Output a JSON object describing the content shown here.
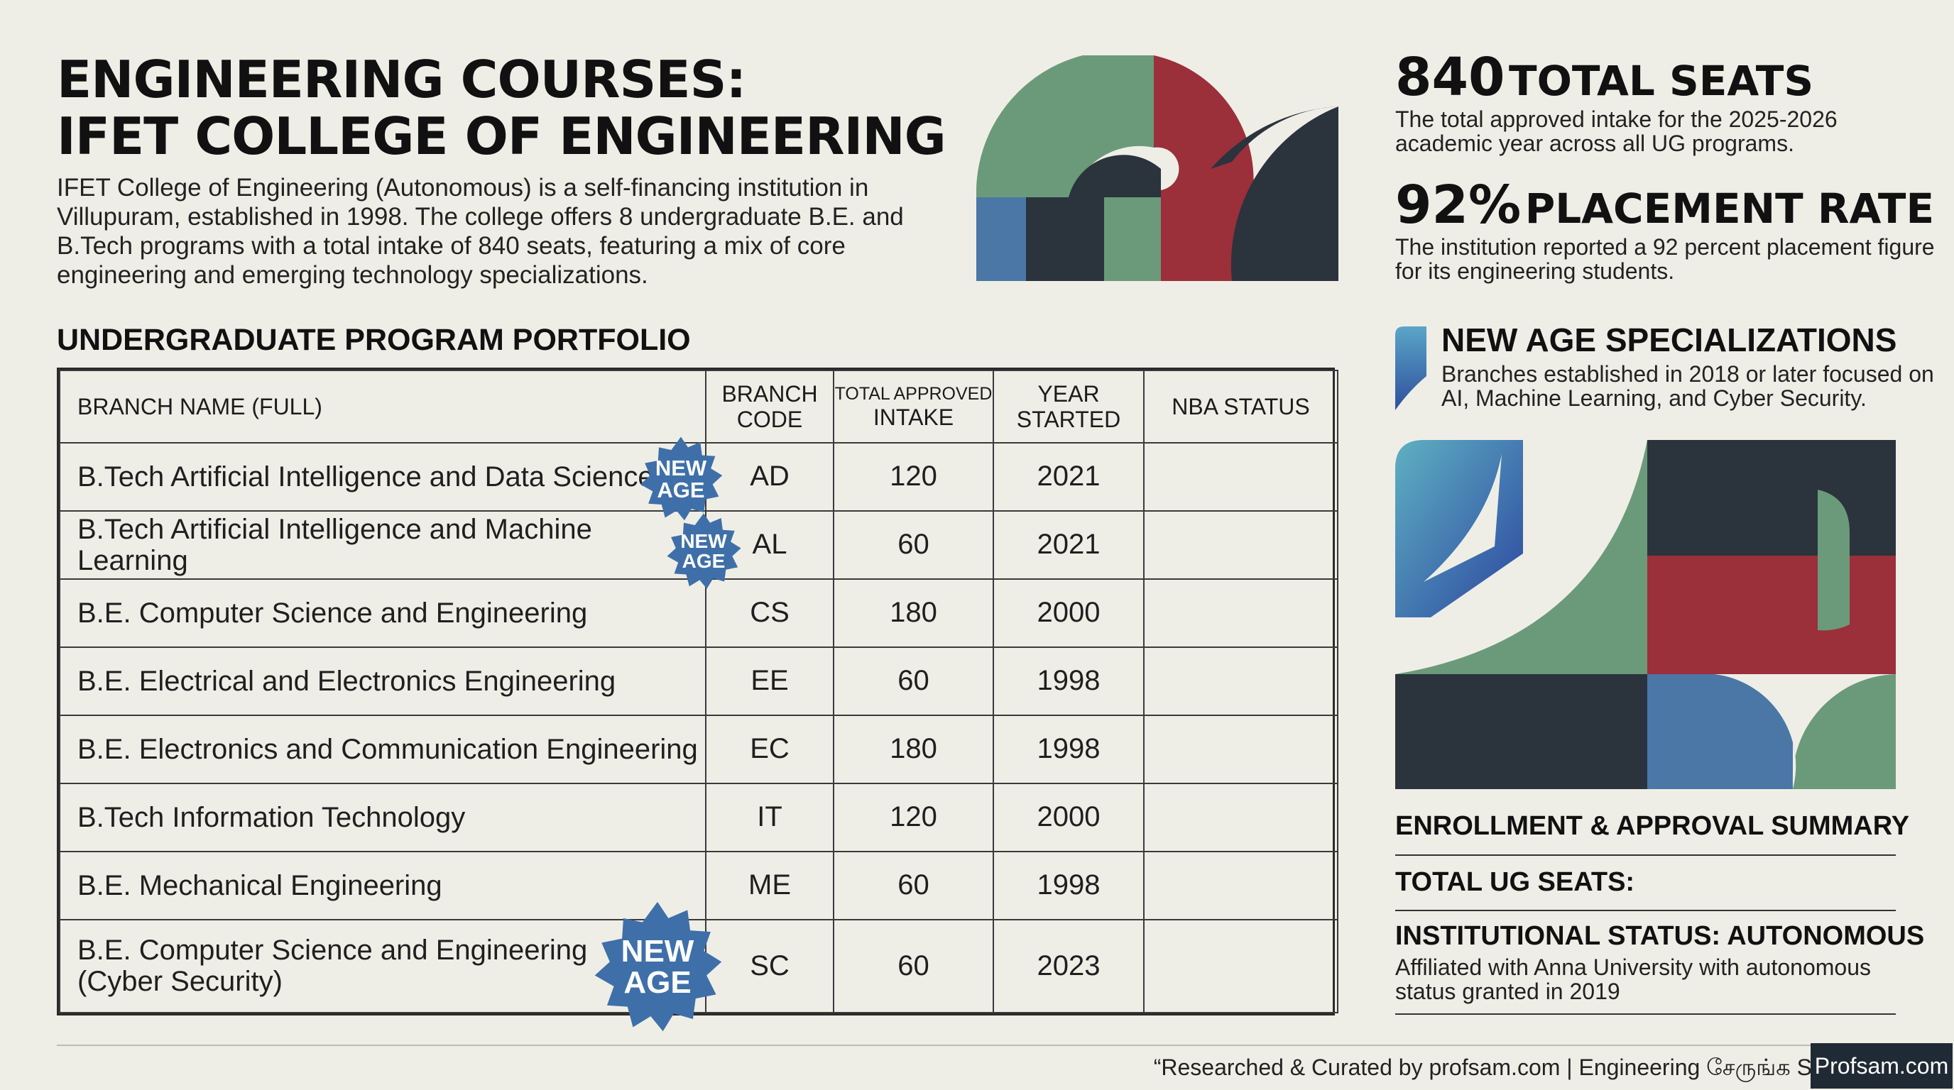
{
  "header": {
    "title_line1": "ENGINEERING COURSES:",
    "title_line2": "IFET COLLEGE OF ENGINEERING",
    "intro": "IFET College of Engineering (Autonomous) is a self-financing institution in Villupuram, established in 1998. The college offers 8 undergraduate B.E. and B.Tech programs with a total intake of 840 seats, featuring a mix of core engineering and emerging technology specializations."
  },
  "portfolio": {
    "heading": "UNDERGRADUATE PROGRAM PORTFOLIO",
    "columns": {
      "name": "BRANCH NAME (FULL)",
      "code_line1": "BRANCH",
      "code_line2": "CODE",
      "intake_line1": "TOTAL APPROVED",
      "intake_line2": "INTAKE",
      "year_line1": "YEAR",
      "year_line2": "STARTED",
      "nba": "NBA STATUS"
    },
    "rows": [
      {
        "name": "B.Tech Artificial Intelligence and Data Science",
        "code": "AD",
        "intake": "120",
        "year": "2021",
        "nba": "",
        "badge_line1": "NEW",
        "badge_line2": "AGE"
      },
      {
        "name": "B.Tech Artificial Intelligence and Machine Learning",
        "code": "AL",
        "intake": "60",
        "year": "2021",
        "nba": "",
        "badge_line1": "NEW",
        "badge_line2": "AGE"
      },
      {
        "name": "B.E. Computer Science and Engineering",
        "code": "CS",
        "intake": "180",
        "year": "2000",
        "nba": ""
      },
      {
        "name": "B.E. Electrical and Electronics Engineering",
        "code": "EE",
        "intake": "60",
        "year": "1998",
        "nba": ""
      },
      {
        "name": "B.E. Electronics and Communication Engineering",
        "code": "EC",
        "intake": "180",
        "year": "1998",
        "nba": ""
      },
      {
        "name": "B.Tech Information Technology",
        "code": "IT",
        "intake": "120",
        "year": "2000",
        "nba": ""
      },
      {
        "name": "B.E. Mechanical Engineering",
        "code": "ME",
        "intake": "60",
        "year": "1998",
        "nba": ""
      },
      {
        "name_line1": "B.E. Computer Science and Engineering",
        "name_line2": "(Cyber Security)",
        "code": "SC",
        "intake": "60",
        "year": "2023",
        "nba": "",
        "badge_line1": "NEW",
        "badge_line2": "AGE"
      }
    ]
  },
  "stats": {
    "seats_number": "840",
    "seats_label": "TOTAL SEATS",
    "seats_desc": "The total approved intake for the 2025-2026 academic year across all UG programs.",
    "placement_number": "92%",
    "placement_label": "PLACEMENT RATE",
    "placement_desc": "The institution reported a 92 percent placement figure for its engineering students."
  },
  "new_age": {
    "title": "NEW AGE SPECIALIZATIONS",
    "desc": "Branches established in 2018 or later focused on AI, Machine Learning, and Cyber Security."
  },
  "summary": {
    "title": "ENROLLMENT & APPROVAL SUMMARY",
    "total_label": "TOTAL UG SEATS:",
    "status_label": "INSTITUTIONAL STATUS: AUTONOMOUS",
    "status_desc": "Affiliated with Anna University with autonomous status granted in 2019"
  },
  "footer": {
    "credit": "“Researched & Curated by profsam.com | Engineering சேருங்க S",
    "logo": "Profsam.com"
  },
  "colors": {
    "background": "#efeee6",
    "sage_green": "#6b9a7a",
    "crimson": "#9b2f3a",
    "charcoal": "#2b333d",
    "steel_blue": "#4a77a6",
    "badge_blue": "#3f6fa8"
  }
}
